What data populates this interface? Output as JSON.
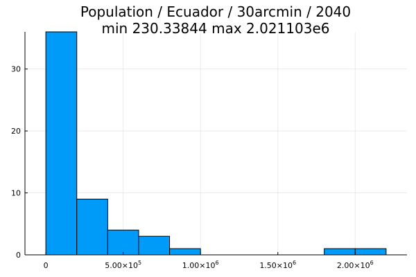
{
  "chart_data": {
    "type": "bar",
    "title_line1": "Population / Ecuador / 30arcmin / 2040",
    "title_line2": "min 230.33844  max 2.021103e6",
    "bar_color": "#009af9",
    "bins": [
      {
        "x0": 0,
        "x1": 200000,
        "count": 36
      },
      {
        "x0": 200000,
        "x1": 400000,
        "count": 9
      },
      {
        "x0": 400000,
        "x1": 600000,
        "count": 4
      },
      {
        "x0": 600000,
        "x1": 800000,
        "count": 3
      },
      {
        "x0": 800000,
        "x1": 1000000,
        "count": 1
      },
      {
        "x0": 1800000,
        "x1": 2000000,
        "count": 1
      },
      {
        "x0": 2000000,
        "x1": 2200000,
        "count": 1
      }
    ],
    "xlim": [
      -135000,
      2335000
    ],
    "ylim": [
      0,
      36
    ],
    "x_ticks": [
      {
        "value": 0,
        "label": "0",
        "mantissa": "",
        "exponent": ""
      },
      {
        "value": 500000,
        "label": "",
        "mantissa": "5.00×10",
        "exponent": "5"
      },
      {
        "value": 1000000,
        "label": "",
        "mantissa": "1.00×10",
        "exponent": "6"
      },
      {
        "value": 1500000,
        "label": "",
        "mantissa": "1.50×10",
        "exponent": "6"
      },
      {
        "value": 2000000,
        "label": "",
        "mantissa": "2.00×10",
        "exponent": "6"
      }
    ],
    "y_ticks": [
      0,
      10,
      20,
      30
    ],
    "grid": true,
    "legend": false
  }
}
